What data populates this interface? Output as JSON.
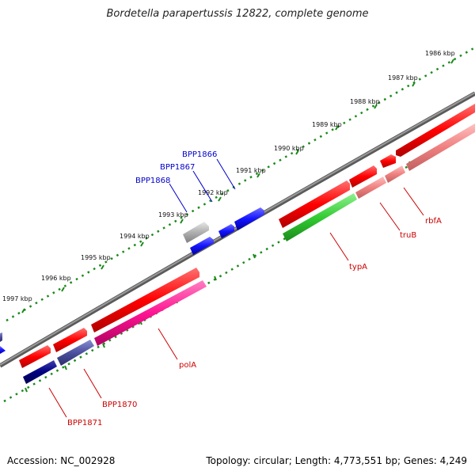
{
  "title": "Bordetella parapertussis 12822, complete genome",
  "footer": {
    "accession": "Accession: NC_002928",
    "stats": "Topology: circular; Length: 4,773,551 bp; Genes: 4,249"
  },
  "scale_ticks": [
    "1986 kbp",
    "1987 kbp",
    "1988 kbp",
    "1989 kbp",
    "1990 kbp",
    "1991 kbp",
    "1992 kbp",
    "1993 kbp",
    "1994 kbp",
    "1995 kbp",
    "1996 kbp",
    "1997 kbp"
  ],
  "gene_labels": {
    "BPP1866": "BPP1866",
    "BPP1867": "BPP1867",
    "BPP1868": "BPP1868",
    "typA": "typA",
    "truB": "truB",
    "rbfA": "rbfA",
    "polA": "polA",
    "BPP1870": "BPP1870",
    "BPP1871": "BPP1871"
  },
  "colors": {
    "backbone": "#808080",
    "scale_dots": "#1a8a1a",
    "red": "#ff0000",
    "pink": "#f08080",
    "green": "#33cc33",
    "magenta": "#ff1493",
    "blue": "#1414ff",
    "navy": "#000080",
    "slate": "#4b4f9e",
    "gray": "#b0b0b0",
    "label_blue": "#0000cc",
    "label_red": "#cc0000"
  }
}
